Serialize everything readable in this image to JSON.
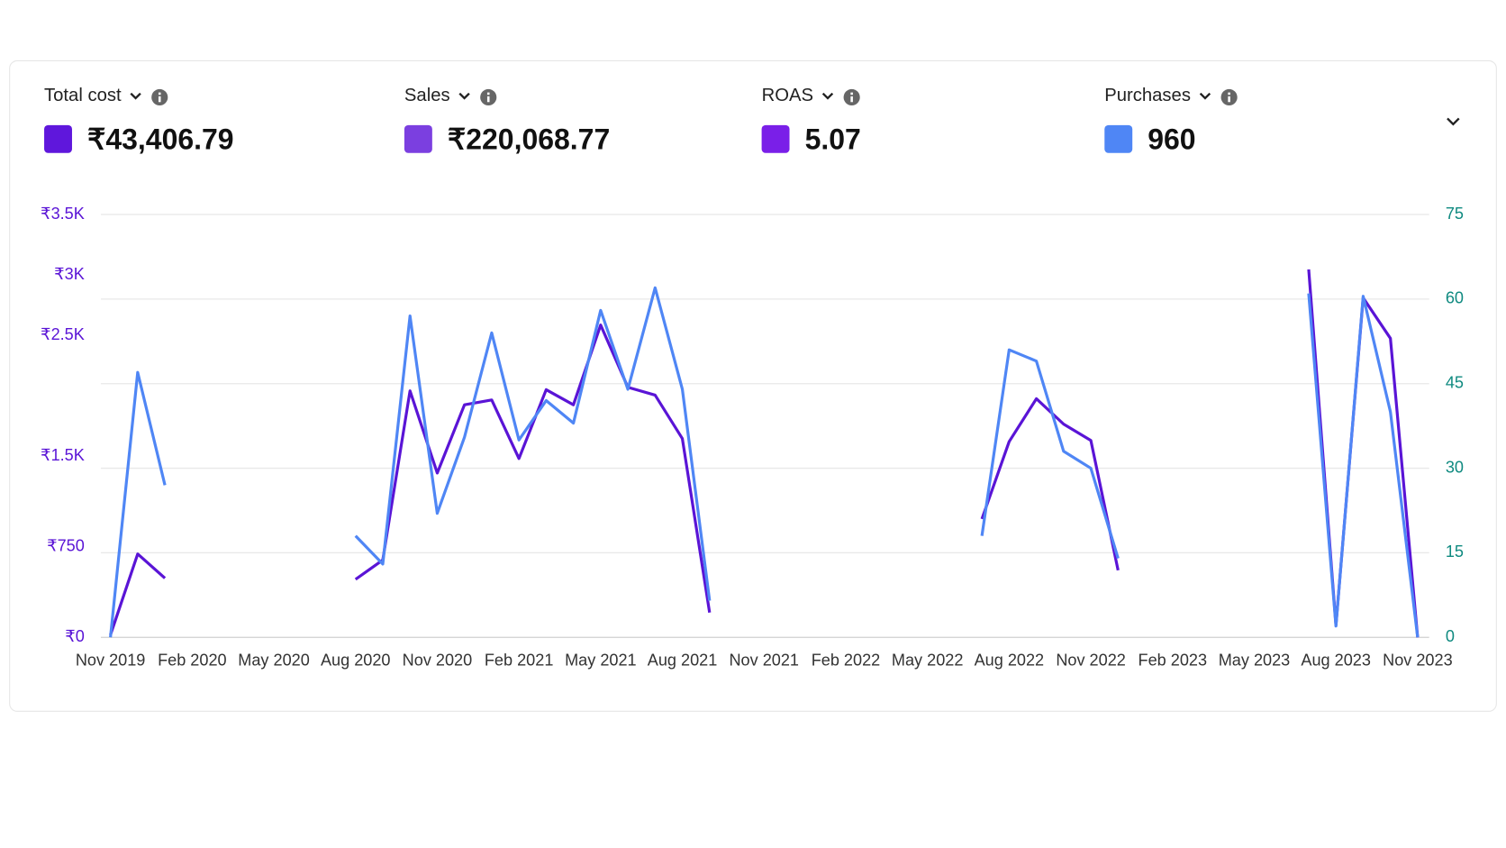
{
  "metrics": [
    {
      "label": "Total cost",
      "value": "₹43,406.79",
      "color": "#5f17dc"
    },
    {
      "label": "Sales",
      "value": "₹220,068.77",
      "color": "#7b3fe0"
    },
    {
      "label": "ROAS",
      "value": "5.07",
      "color": "#7a1fe8"
    },
    {
      "label": "Purchases",
      "value": "960",
      "color": "#4f86f5"
    }
  ],
  "chart_data": {
    "type": "line",
    "categories": [
      "Nov 2019",
      null,
      null,
      "Feb 2020",
      null,
      null,
      "May 2020",
      null,
      null,
      "Aug 2020",
      null,
      null,
      "Nov 2020",
      null,
      null,
      "Feb 2021",
      null,
      null,
      "May 2021",
      null,
      null,
      "Aug 2021",
      null,
      null,
      "Nov 2021",
      null,
      null,
      "Feb 2022",
      null,
      null,
      "May 2022",
      null,
      null,
      "Aug 2022",
      null,
      null,
      "Nov 2022",
      null,
      null,
      "Feb 2023",
      null,
      null,
      "May 2023",
      null,
      null,
      "Aug 2023",
      null,
      null,
      "Nov 2023"
    ],
    "series": [
      {
        "name": "Total cost",
        "color": "#5a14d6",
        "values": [
          20,
          690,
          490,
          null,
          null,
          null,
          null,
          null,
          null,
          480,
          640,
          2040,
          1360,
          1925,
          1965,
          1480,
          2050,
          1925,
          2585,
          2070,
          2005,
          1645,
          205,
          null,
          null,
          null,
          null,
          null,
          null,
          null,
          null,
          null,
          980,
          1620,
          1975,
          1765,
          1630,
          555,
          null,
          null,
          null,
          null,
          null,
          null,
          3045,
          100,
          2810,
          2475,
          0
        ]
      },
      {
        "name": "Purchases",
        "color": "#4f86f5",
        "axis": "y2",
        "values": [
          0,
          47,
          27,
          null,
          null,
          null,
          null,
          null,
          null,
          18,
          13,
          57,
          22,
          35.5,
          54,
          35,
          42,
          38,
          58,
          44,
          62,
          44,
          6.5,
          null,
          null,
          null,
          null,
          null,
          null,
          null,
          null,
          null,
          18,
          51,
          49,
          33,
          30,
          14,
          null,
          null,
          null,
          null,
          null,
          null,
          61,
          2,
          60.5,
          40,
          0
        ]
      }
    ],
    "ylim": [
      0,
      3500
    ],
    "yticks": [
      {
        "value": 0,
        "label": "₹0"
      },
      {
        "value": 750,
        "label": "₹750"
      },
      {
        "value": 1500,
        "label": "₹1.5K"
      },
      {
        "value": 2500,
        "label": "₹2.5K"
      },
      {
        "value": 3000,
        "label": "₹3K"
      },
      {
        "value": 3500,
        "label": "₹3.5K"
      }
    ],
    "y2lim": [
      0,
      75
    ],
    "y2ticks": [
      0,
      15,
      30,
      45,
      60,
      75
    ],
    "grid": true
  }
}
